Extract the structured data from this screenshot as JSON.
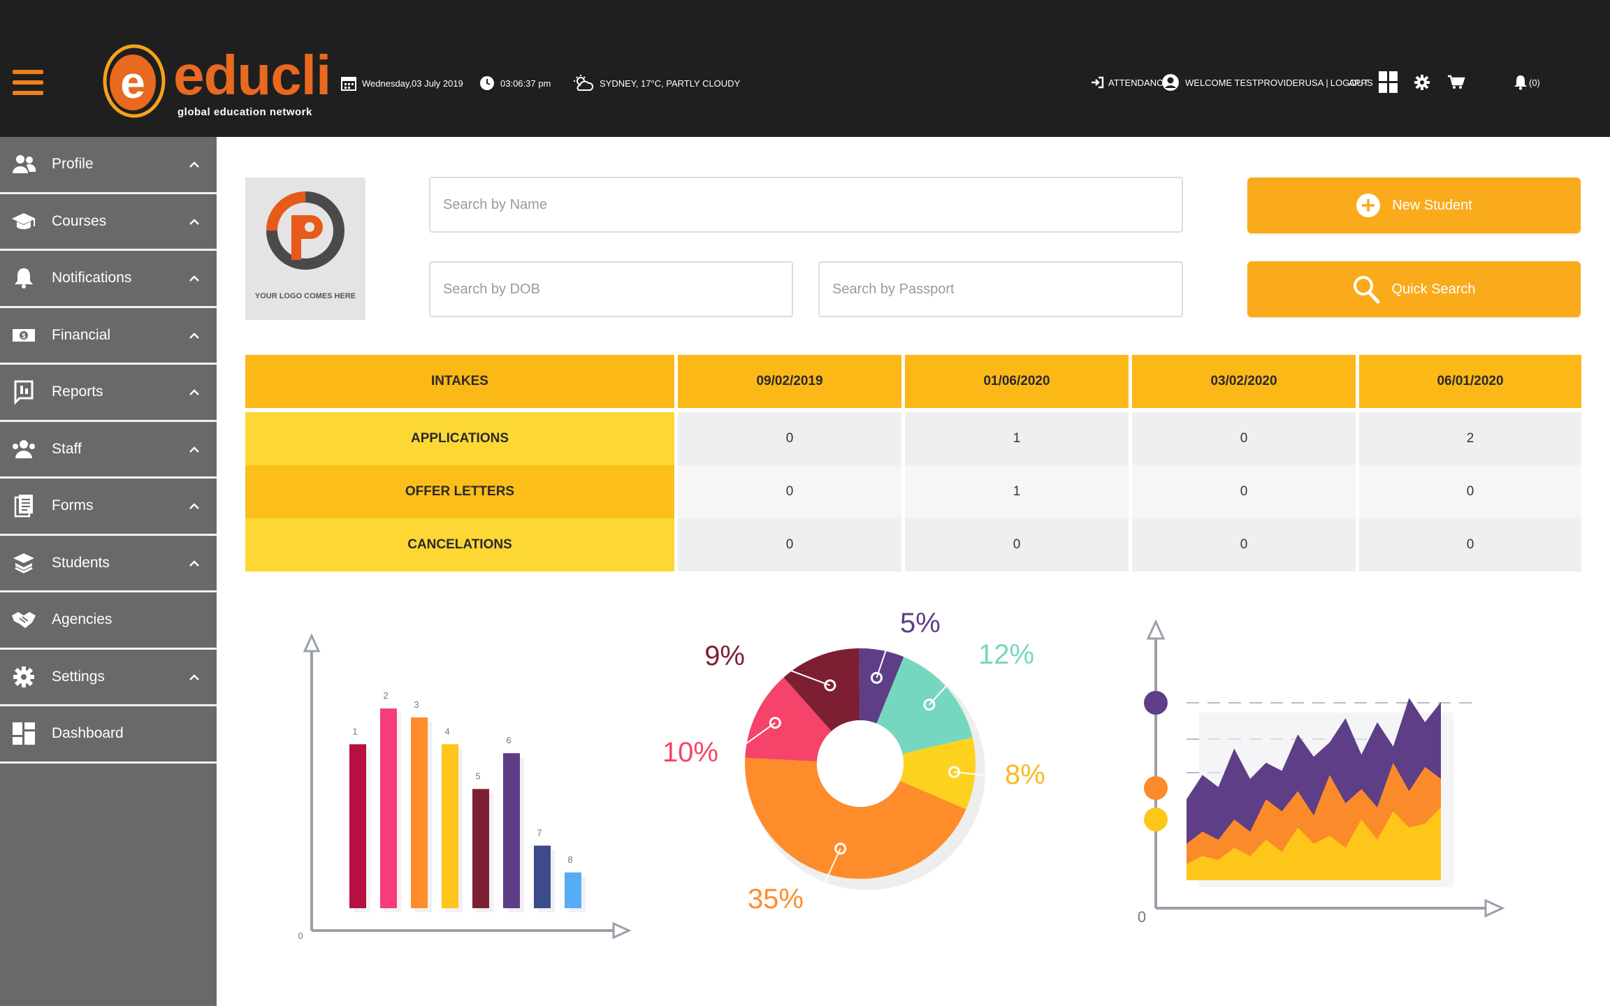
{
  "header": {
    "logo_text": "educli",
    "logo_tagline": "global education network",
    "date": "Wednesday,03 July 2019",
    "time": "03:06:37 pm",
    "weather": "SYDNEY, 17°C, PARTLY CLOUDY",
    "attendance": "ATTENDANCE",
    "welcome": "WELCOME TESTPROVIDERUSA",
    "logout": "LOGOUT",
    "apps": "APPS",
    "notifications_count": "(0)"
  },
  "sidebar": {
    "items": [
      {
        "label": "Profile",
        "icon": "users-icon",
        "expandable": true
      },
      {
        "label": "Courses",
        "icon": "graduation-cap-icon",
        "expandable": true
      },
      {
        "label": "Notifications",
        "icon": "bell-icon",
        "expandable": true
      },
      {
        "label": "Financial",
        "icon": "money-icon",
        "expandable": true
      },
      {
        "label": "Reports",
        "icon": "report-icon",
        "expandable": true
      },
      {
        "label": "Staff",
        "icon": "staff-icon",
        "expandable": true
      },
      {
        "label": "Forms",
        "icon": "forms-icon",
        "expandable": true
      },
      {
        "label": "Students",
        "icon": "students-icon",
        "expandable": true
      },
      {
        "label": "Agencies",
        "icon": "handshake-icon",
        "expandable": false
      },
      {
        "label": "Settings",
        "icon": "gear-icon",
        "expandable": true
      },
      {
        "label": "Dashboard",
        "icon": "dashboard-icon",
        "expandable": false
      }
    ]
  },
  "main": {
    "logo_placeholder": "YOUR LOGO COMES HERE",
    "search_name_placeholder": "Search by Name",
    "search_dob_placeholder": "Search by DOB",
    "search_passport_placeholder": "Search by Passport",
    "new_student_label": "New Student",
    "quick_search_label": "Quick Search"
  },
  "table": {
    "headers": [
      "INTAKES",
      "09/02/2019",
      "01/06/2020",
      "03/02/2020",
      "06/01/2020"
    ],
    "rows": [
      {
        "label": "APPLICATIONS",
        "values": [
          "0",
          "1",
          "0",
          "2"
        ]
      },
      {
        "label": "OFFER LETTERS",
        "values": [
          "0",
          "1",
          "0",
          "0"
        ]
      },
      {
        "label": "CANCELATIONS",
        "values": [
          "0",
          "0",
          "0",
          "0"
        ]
      }
    ]
  },
  "chart_data": [
    {
      "type": "bar",
      "categories": [
        "1",
        "2",
        "3",
        "4",
        "5",
        "6",
        "7",
        "8"
      ],
      "values": [
        55,
        67,
        64,
        55,
        40,
        52,
        21,
        12
      ],
      "colors": [
        "#b5103f",
        "#f53d7a",
        "#ff8c2b",
        "#fec51a",
        "#7d1f33",
        "#5d3e87",
        "#3c4b89",
        "#57acf5"
      ],
      "origin_label": "0"
    },
    {
      "type": "pie",
      "labels": [
        "5%",
        "12%",
        "8%",
        "35%",
        "10%",
        "9%"
      ],
      "values": [
        5,
        12,
        8,
        35,
        10,
        9
      ],
      "colors": [
        "#5d3e87",
        "#76d7c0",
        "#fdd21f",
        "#ff8c2b",
        "#f5436a",
        "#7d1f33"
      ]
    },
    {
      "type": "area",
      "series": [
        {
          "values": [
            40,
            52,
            46,
            65,
            50,
            58,
            54,
            72,
            61,
            68,
            80,
            62,
            78,
            66,
            90,
            78,
            88
          ]
        },
        {
          "values": [
            18,
            24,
            20,
            30,
            24,
            40,
            34,
            44,
            32,
            52,
            38,
            45,
            36,
            58,
            44,
            56,
            50
          ]
        },
        {
          "values": [
            8,
            12,
            10,
            16,
            12,
            20,
            14,
            26,
            18,
            22,
            16,
            30,
            20,
            34,
            26,
            28,
            36
          ]
        }
      ],
      "colors": [
        "#5d3e87",
        "#fb8a2a",
        "#fec51a"
      ],
      "marker_colors": [
        "#5d3e87",
        "#fb8a2a",
        "#fec51a"
      ],
      "origin_label": "0"
    }
  ]
}
